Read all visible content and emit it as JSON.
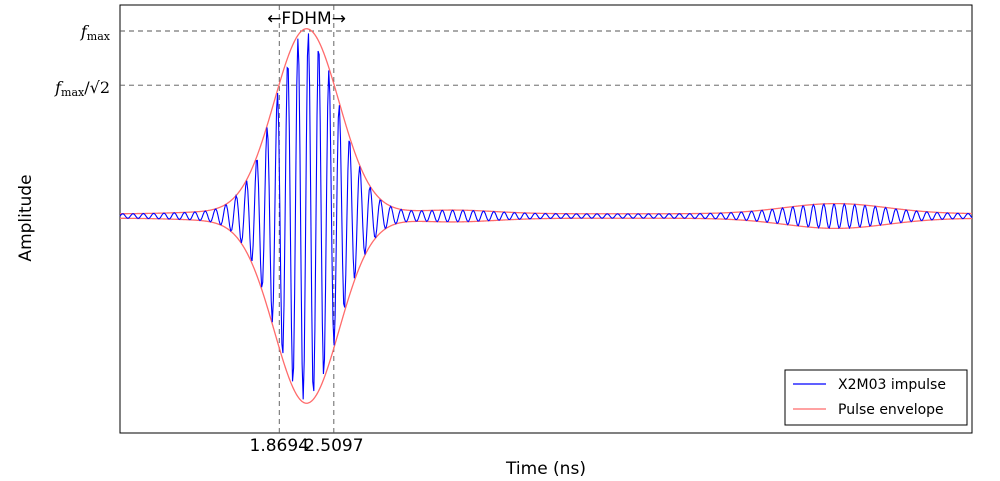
{
  "chart_data": {
    "type": "line",
    "title": "",
    "xlabel": "Time (ns)",
    "ylabel": "Amplitude",
    "xlim": [
      0,
      10
    ],
    "ylim": [
      -1.15,
      1.15
    ],
    "grid": false,
    "legend_position": "bottom-right",
    "x_ticks": [
      1.8694,
      2.5097
    ],
    "x_tick_labels": [
      "1.8694",
      "2.5097"
    ],
    "y_ticks": [
      1.0,
      0.7071
    ],
    "y_tick_labels": {
      "fmax": {
        "base": "f",
        "sub": "max"
      },
      "fmax_sqrt2": {
        "base": "f",
        "sub": "max",
        "suffix": "/√2"
      }
    },
    "fdhm_label": "←FDHM→",
    "series": [
      {
        "name": "X2M03 impulse",
        "color": "#0000ff"
      },
      {
        "name": "Pulse envelope",
        "color": "#ff6b6b"
      }
    ]
  }
}
